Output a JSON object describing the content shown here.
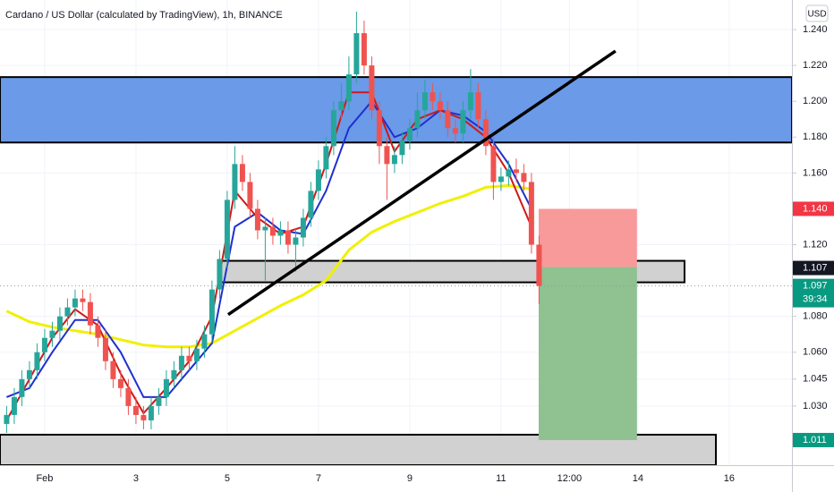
{
  "chart_data": {
    "type": "candlestick",
    "title": "Cardano / US Dollar (calculated by TradingView), 1h, BINANCE",
    "currency": "USD",
    "up_color": "#26a69a",
    "down_color": "#ef5350",
    "x": [
      -20,
      -16,
      -12,
      -8,
      -4,
      0,
      4,
      8,
      12,
      16,
      20,
      24,
      28,
      32,
      36,
      40,
      44,
      48,
      52,
      56,
      60,
      64,
      68,
      72,
      76,
      80,
      84,
      88,
      92,
      96,
      100,
      104,
      108,
      112,
      116,
      120,
      124,
      128,
      132,
      136,
      140,
      144,
      148,
      152,
      156,
      160,
      164,
      168,
      172,
      176,
      180,
      184,
      188,
      192,
      196,
      200,
      204,
      208,
      212,
      216,
      220,
      224,
      228,
      232,
      236,
      240,
      244,
      248,
      252,
      256,
      260
    ],
    "open": [
      1.02,
      1.025,
      1.035,
      1.045,
      1.05,
      1.06,
      1.068,
      1.072,
      1.08,
      1.085,
      1.09,
      1.088,
      1.075,
      1.068,
      1.055,
      1.045,
      1.04,
      1.03,
      1.025,
      1.022,
      1.03,
      1.035,
      1.045,
      1.05,
      1.058,
      1.055,
      1.062,
      1.07,
      1.095,
      1.112,
      1.145,
      1.165,
      1.155,
      1.14,
      1.128,
      1.13,
      1.125,
      1.128,
      1.12,
      1.124,
      1.135,
      1.15,
      1.162,
      1.175,
      1.195,
      1.2,
      1.215,
      1.238,
      1.22,
      1.195,
      1.175,
      1.165,
      1.17,
      1.178,
      1.185,
      1.195,
      1.205,
      1.2,
      1.195,
      1.185,
      1.182,
      1.195,
      1.205,
      1.19,
      1.175,
      1.155,
      1.158,
      1.162,
      1.16,
      1.155,
      1.12
    ],
    "high": [
      1.03,
      1.04,
      1.05,
      1.055,
      1.065,
      1.073,
      1.077,
      1.085,
      1.09,
      1.095,
      1.095,
      1.093,
      1.08,
      1.073,
      1.06,
      1.05,
      1.045,
      1.035,
      1.03,
      1.035,
      1.04,
      1.05,
      1.055,
      1.063,
      1.063,
      1.067,
      1.075,
      1.1,
      1.117,
      1.15,
      1.175,
      1.17,
      1.16,
      1.145,
      1.135,
      1.135,
      1.133,
      1.133,
      1.129,
      1.14,
      1.155,
      1.167,
      1.18,
      1.2,
      1.21,
      1.225,
      1.25,
      1.245,
      1.225,
      1.2,
      1.18,
      1.175,
      1.183,
      1.19,
      1.205,
      1.212,
      1.21,
      1.205,
      1.2,
      1.19,
      1.2,
      1.218,
      1.21,
      1.195,
      1.18,
      1.163,
      1.167,
      1.168,
      1.165,
      1.16,
      1.125
    ],
    "low": [
      1.015,
      1.02,
      1.03,
      1.04,
      1.045,
      1.055,
      1.063,
      1.067,
      1.075,
      1.08,
      1.083,
      1.07,
      1.063,
      1.05,
      1.04,
      1.035,
      1.025,
      1.02,
      1.017,
      1.017,
      1.025,
      1.03,
      1.04,
      1.045,
      1.05,
      1.05,
      1.057,
      1.065,
      1.09,
      1.107,
      1.14,
      1.15,
      1.135,
      1.123,
      1.1,
      1.12,
      1.12,
      1.115,
      1.105,
      1.119,
      1.13,
      1.145,
      1.157,
      1.17,
      1.19,
      1.195,
      1.21,
      1.215,
      1.19,
      1.165,
      1.145,
      1.16,
      1.165,
      1.173,
      1.18,
      1.19,
      1.195,
      1.19,
      1.18,
      1.177,
      1.177,
      1.19,
      1.185,
      1.17,
      1.145,
      1.15,
      1.153,
      1.155,
      1.15,
      1.115,
      1.087
    ],
    "close": [
      1.025,
      1.035,
      1.045,
      1.05,
      1.06,
      1.068,
      1.072,
      1.08,
      1.085,
      1.09,
      1.088,
      1.075,
      1.068,
      1.055,
      1.045,
      1.04,
      1.03,
      1.025,
      1.022,
      1.03,
      1.035,
      1.045,
      1.05,
      1.058,
      1.055,
      1.062,
      1.07,
      1.095,
      1.112,
      1.145,
      1.165,
      1.155,
      1.14,
      1.128,
      1.13,
      1.125,
      1.128,
      1.12,
      1.124,
      1.135,
      1.15,
      1.162,
      1.175,
      1.195,
      1.2,
      1.215,
      1.238,
      1.22,
      1.195,
      1.175,
      1.165,
      1.17,
      1.178,
      1.185,
      1.195,
      1.205,
      1.2,
      1.195,
      1.185,
      1.182,
      1.195,
      1.205,
      1.19,
      1.175,
      1.155,
      1.158,
      1.162,
      1.16,
      1.155,
      1.12,
      1.097
    ],
    "lines": [
      {
        "color": "#f0f000",
        "width": 3,
        "x": [
          -20,
          -8,
          4,
          16,
          28,
          40,
          52,
          64,
          76,
          88,
          100,
          112,
          124,
          136,
          148,
          160,
          172,
          184,
          196,
          208,
          220,
          232,
          244,
          256
        ],
        "values": [
          1.083,
          1.077,
          1.074,
          1.072,
          1.07,
          1.067,
          1.064,
          1.063,
          1.063,
          1.065,
          1.072,
          1.079,
          1.086,
          1.092,
          1.1,
          1.117,
          1.127,
          1.133,
          1.138,
          1.143,
          1.147,
          1.152,
          1.153,
          1.151
        ]
      },
      {
        "color": "#1f2fd0",
        "width": 2,
        "x": [
          -20,
          -8,
          4,
          16,
          28,
          40,
          52,
          64,
          76,
          88,
          100,
          112,
          124,
          136,
          148,
          160,
          172,
          184,
          196,
          208,
          220,
          232,
          244,
          256
        ],
        "values": [
          1.035,
          1.04,
          1.06,
          1.078,
          1.078,
          1.06,
          1.035,
          1.035,
          1.05,
          1.065,
          1.13,
          1.138,
          1.128,
          1.126,
          1.15,
          1.185,
          1.2,
          1.18,
          1.185,
          1.195,
          1.192,
          1.183,
          1.165,
          1.14
        ]
      },
      {
        "color": "#d01818",
        "width": 2,
        "x": [
          -20,
          -8,
          4,
          16,
          28,
          40,
          52,
          64,
          76,
          88,
          100,
          112,
          124,
          136,
          148,
          160,
          172,
          184,
          196,
          208,
          220,
          232,
          244,
          256
        ],
        "values": [
          1.022,
          1.045,
          1.068,
          1.084,
          1.075,
          1.048,
          1.026,
          1.04,
          1.055,
          1.08,
          1.15,
          1.135,
          1.126,
          1.13,
          1.165,
          1.205,
          1.205,
          1.172,
          1.19,
          1.195,
          1.19,
          1.18,
          1.16,
          1.13
        ]
      }
    ],
    "zones": [
      {
        "from_x": -23.5,
        "to_x": 393,
        "low": 1.177,
        "high": 1.2135,
        "color": "#6a9ae8"
      },
      {
        "from_x": 92,
        "to_x": 336.5,
        "low": 1.099,
        "high": 1.111,
        "color": "#d1d1d1"
      },
      {
        "from_x": -23.5,
        "to_x": 353,
        "low": 0.997,
        "high": 1.014,
        "color": "#d1d1d1"
      }
    ],
    "trendline": {
      "x": [
        96.5,
        300.2
      ],
      "y": [
        1.081,
        1.228
      ]
    },
    "position": {
      "from_x": 259.8,
      "to_x": 311.5,
      "entry": 1.1075,
      "stop": 1.14,
      "target": 1.011,
      "stop_color": "#f89a9a",
      "target_color": "#8fc191"
    },
    "price_labels": [
      {
        "value": 1.14,
        "label": "1.140",
        "color": "#f23645"
      },
      {
        "value": 1.107,
        "label": "1.107",
        "color": "#131722"
      },
      {
        "value": 1.097,
        "label": "1.097",
        "color": "#089981",
        "countdown": "39:34"
      },
      {
        "value": 1.011,
        "label": "1.011",
        "color": "#089981"
      }
    ],
    "xlim": [
      -23.5,
      393
    ],
    "ylim": [
      0.997,
      1.2565
    ],
    "xticks": [
      {
        "value": 0,
        "label": "Feb"
      },
      {
        "value": 48,
        "label": "3"
      },
      {
        "value": 96,
        "label": "5"
      },
      {
        "value": 144,
        "label": "7"
      },
      {
        "value": 192,
        "label": "9"
      },
      {
        "value": 240,
        "label": "11"
      },
      {
        "value": 276,
        "label": "12:00"
      },
      {
        "value": 312,
        "label": "14"
      },
      {
        "value": 360,
        "label": "16"
      }
    ],
    "yticks": [
      {
        "value": 1.24,
        "label": "1.240"
      },
      {
        "value": 1.22,
        "label": "1.220"
      },
      {
        "value": 1.2,
        "label": "1.200"
      },
      {
        "value": 1.18,
        "label": "1.180"
      },
      {
        "value": 1.16,
        "label": "1.160"
      },
      {
        "value": 1.12,
        "label": "1.120"
      },
      {
        "value": 1.08,
        "label": "1.080"
      },
      {
        "value": 1.06,
        "label": "1.060"
      },
      {
        "value": 1.045,
        "label": "1.045"
      },
      {
        "value": 1.03,
        "label": "1.030"
      }
    ]
  }
}
